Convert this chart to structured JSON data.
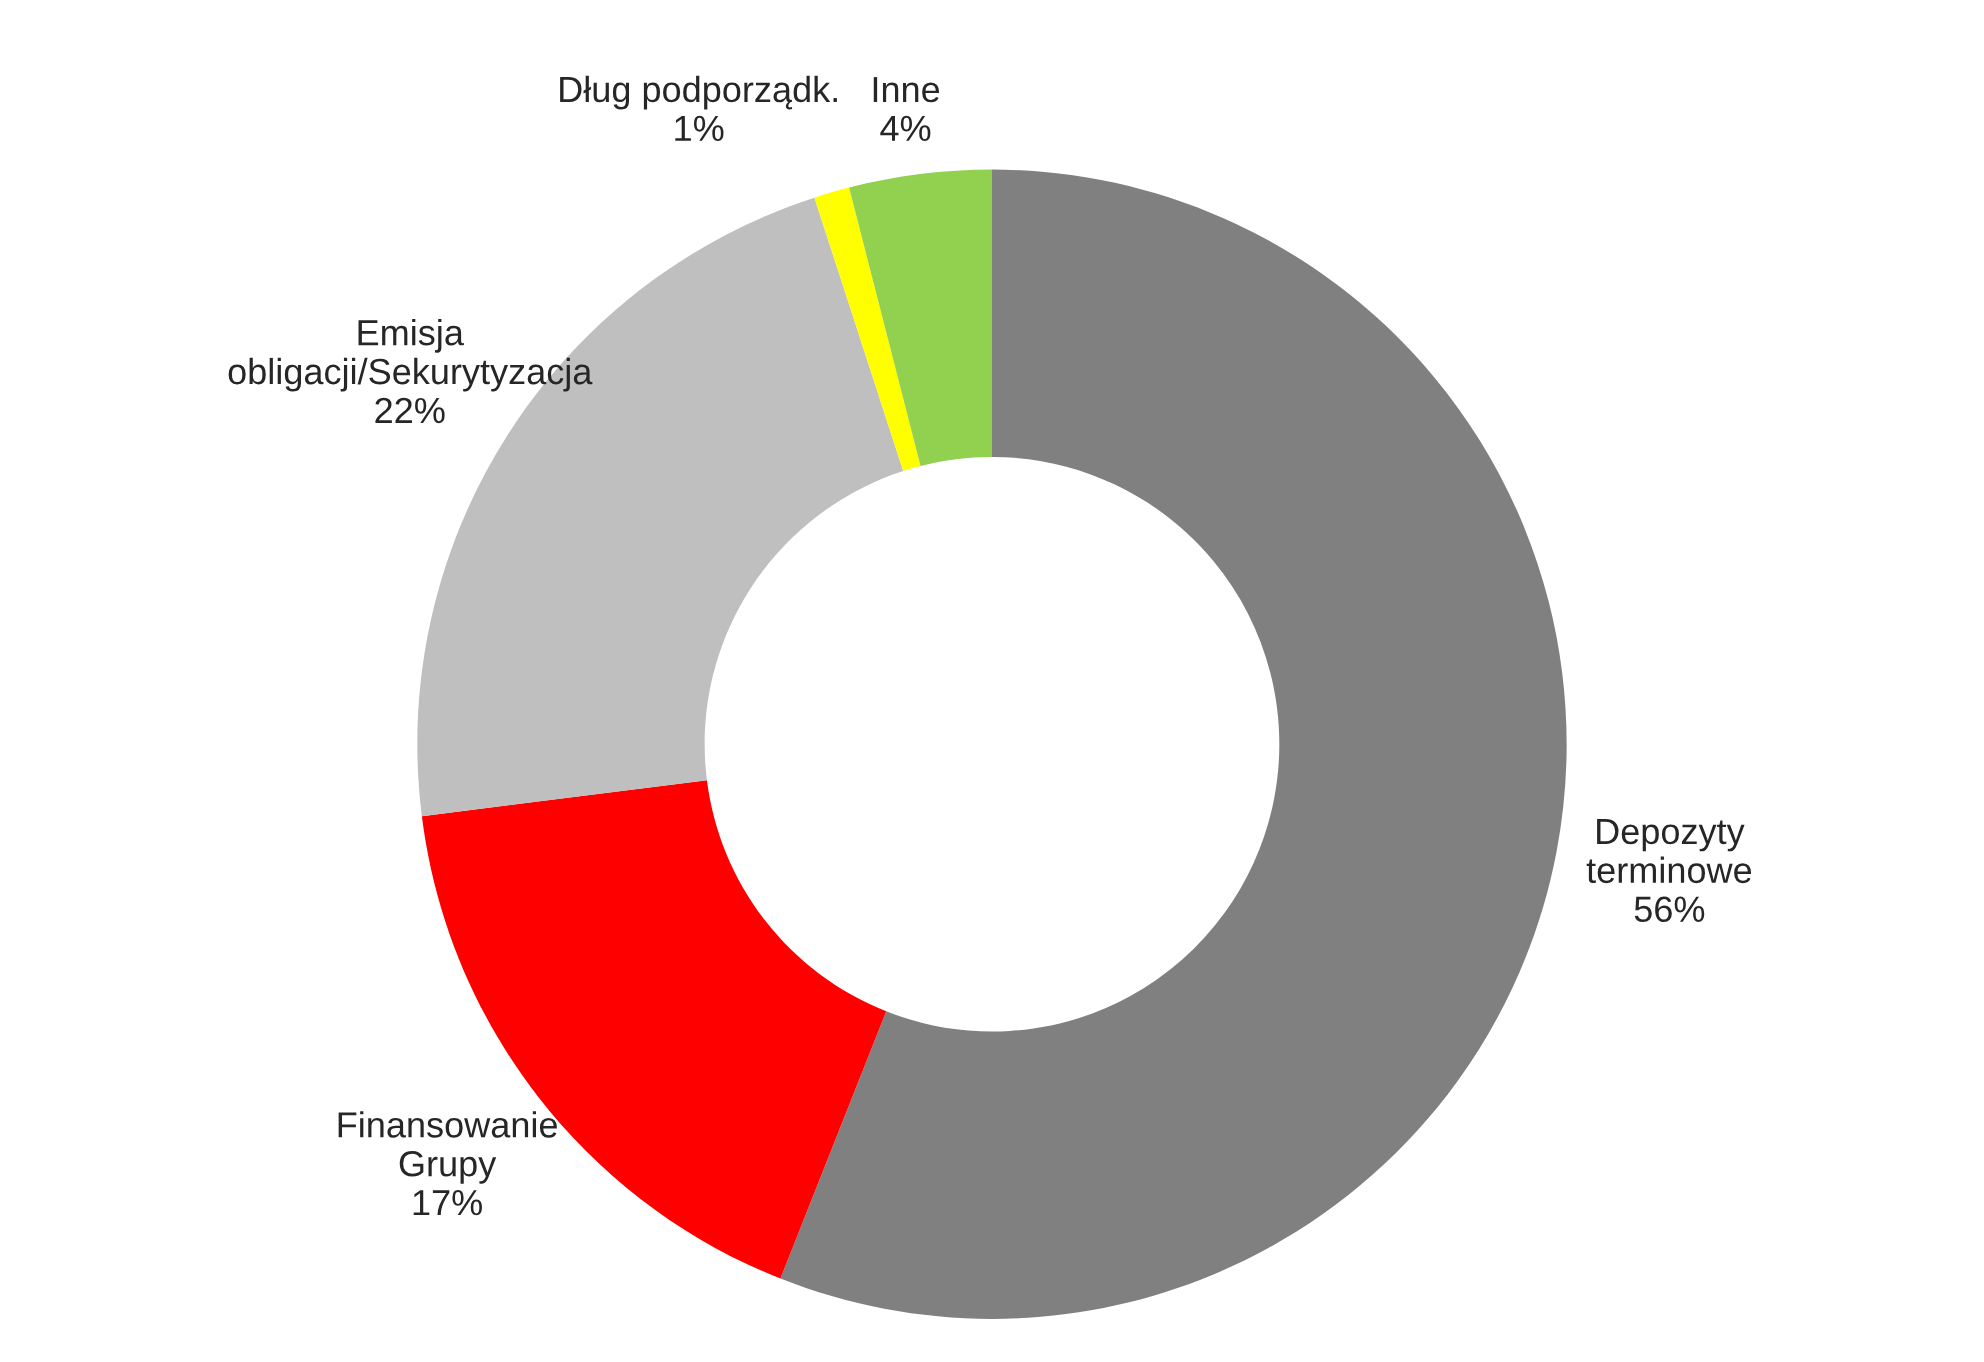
{
  "chart_data": {
    "type": "donut",
    "categories": [
      "Depozyty terminowe",
      "Finansowanie Grupy",
      "Emisja obligacji/Sekurytyzacja",
      "Dług podporządk.",
      "Inne"
    ],
    "values": [
      56,
      17,
      22,
      1,
      4
    ],
    "colors": [
      "#808080",
      "#ff0000",
      "#bfbfbf",
      "#ffff00",
      "#92d050"
    ],
    "value_labels": [
      "56%",
      "17%",
      "22%",
      "1%",
      "4%"
    ],
    "legend": false
  }
}
